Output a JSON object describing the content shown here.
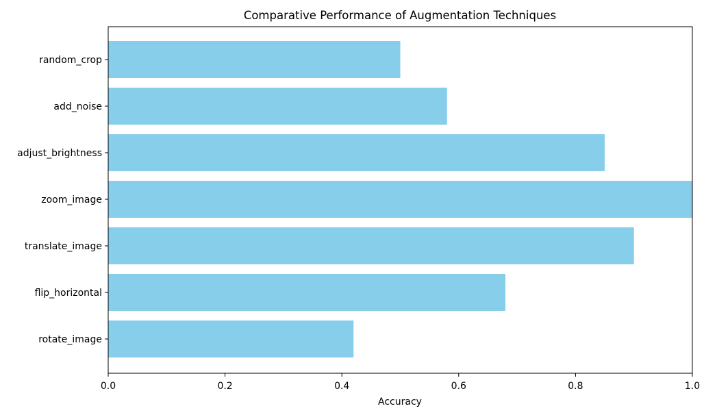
{
  "chart_data": {
    "type": "bar",
    "orientation": "horizontal",
    "title": "Comparative Performance of Augmentation Techniques",
    "xlabel": "Accuracy",
    "ylabel": "",
    "categories": [
      "rotate_image",
      "flip_horizontal",
      "translate_image",
      "zoom_image",
      "adjust_brightness",
      "add_noise",
      "random_crop"
    ],
    "values": [
      0.42,
      0.68,
      0.9,
      1.0,
      0.85,
      0.58,
      0.5
    ],
    "xlim": [
      0.0,
      1.0
    ],
    "xticks": [
      "0.0",
      "0.2",
      "0.4",
      "0.6",
      "0.8",
      "1.0"
    ],
    "grid": false,
    "colors": {
      "bar": "#87CEEB",
      "axis": "#000000",
      "background": "#ffffff"
    }
  }
}
